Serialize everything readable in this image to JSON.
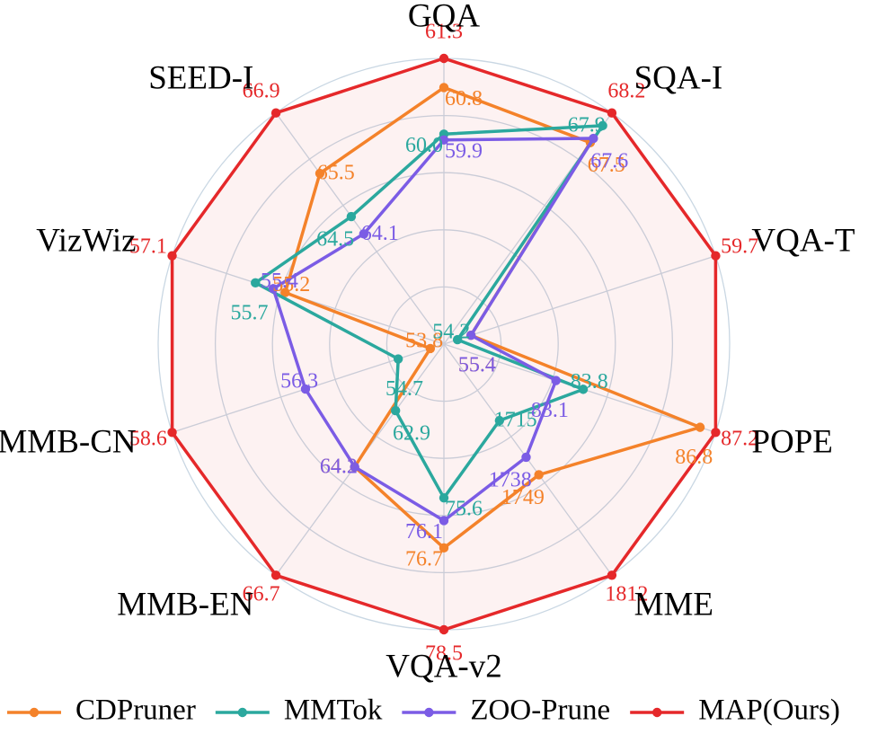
{
  "chart_data": {
    "type": "radar",
    "axes": [
      "GQA",
      "SQA-I",
      "VQA-T",
      "POPE",
      "MME",
      "VQA-v2",
      "MMB-EN",
      "MMB-CN",
      "VizWiz",
      "SEED-I"
    ],
    "grid": true,
    "legend_position": "bottom",
    "series": [
      {
        "name": "CDPruner",
        "color": "#F4822A",
        "values": [
          60.8,
          67.5,
          55.4,
          86.8,
          1749,
          76.7,
          64.2,
          53.8,
          55.2,
          65.5
        ],
        "labels": [
          "60.8",
          "67.5",
          "55.4",
          "86.8",
          "1749",
          "76.7",
          "64.2",
          "53.8",
          "55.2",
          "65.5"
        ]
      },
      {
        "name": "MMTok",
        "color": "#2BA89E",
        "values": [
          60.0,
          67.9,
          54.2,
          83.8,
          1715,
          75.6,
          62.9,
          54.7,
          55.7,
          64.5
        ],
        "labels": [
          "60.0",
          "67.9",
          "54.2",
          "83.8",
          "1715",
          "75.6",
          "62.9",
          "54.7",
          "55.7",
          "64.5"
        ]
      },
      {
        "name": "ZOO-Prune",
        "color": "#7B5CE5",
        "values": [
          59.9,
          67.6,
          55.4,
          83.1,
          1738,
          76.1,
          64.2,
          56.3,
          55.4,
          64.1
        ],
        "labels": [
          "59.9",
          "67.6",
          "55.4",
          "83.1",
          "1738",
          "76.1",
          "64.2",
          "56.3",
          "55.4",
          "64.1"
        ]
      },
      {
        "name": "MAP(Ours)",
        "color": "#E5282A",
        "values": [
          61.3,
          68.2,
          59.7,
          87.2,
          1812,
          78.5,
          66.7,
          58.6,
          57.1,
          66.9
        ],
        "labels": [
          "61.3",
          "68.2",
          "59.7",
          "87.2",
          "1812",
          "78.5",
          "66.7",
          "58.6",
          "57.1",
          "66.9"
        ]
      }
    ]
  }
}
